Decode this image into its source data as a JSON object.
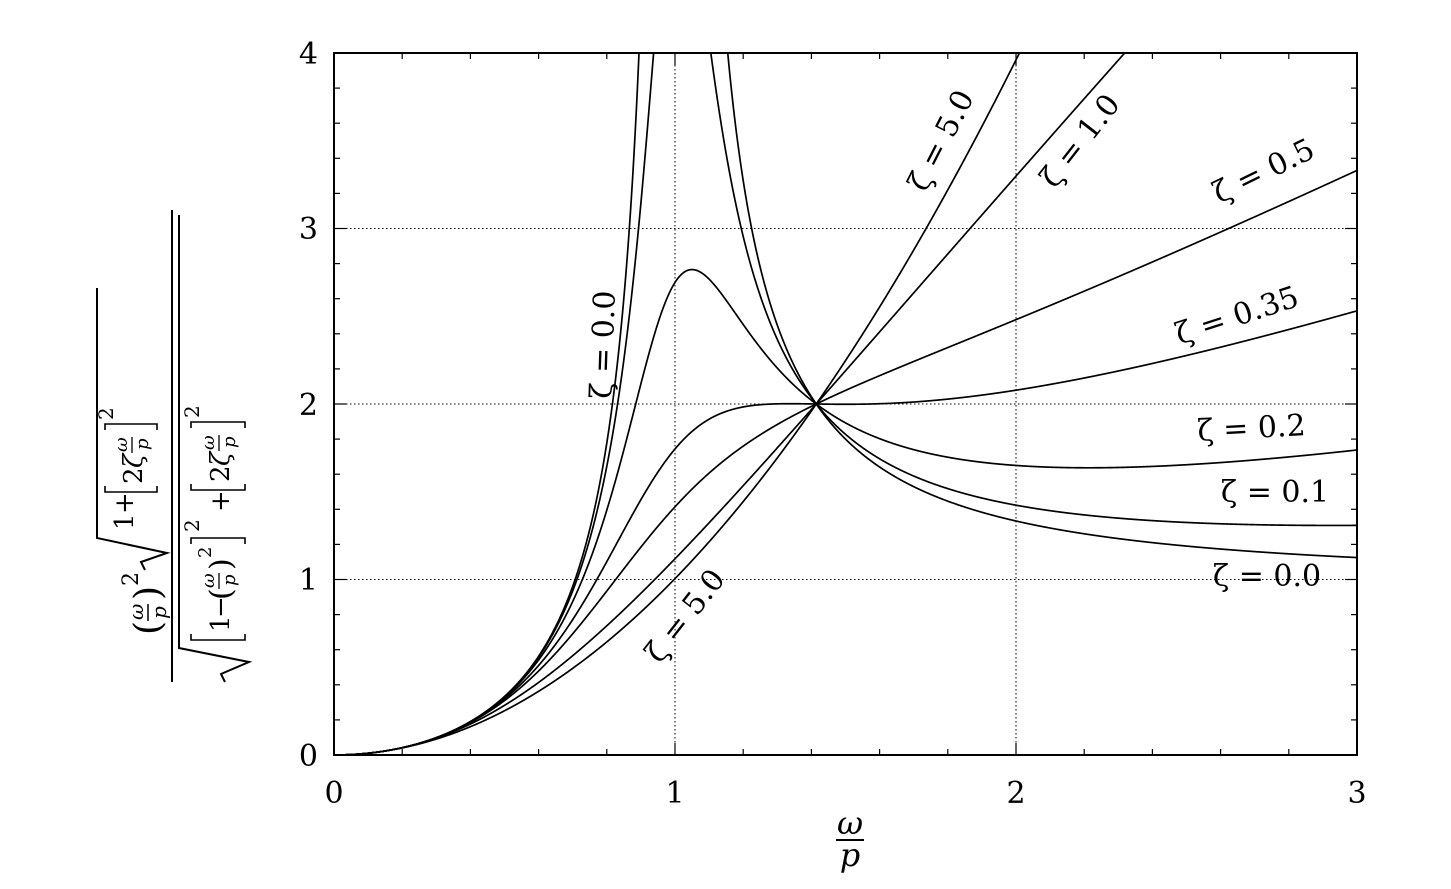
{
  "chart_data": {
    "type": "line",
    "title": "",
    "xlabel": "ω/p",
    "ylabel": "(ω/p)² √(1+[2ζ ω/p]²) / √([1−(ω/p)²]² + [2ζ ω/p]²)",
    "xlim": [
      0,
      3
    ],
    "ylim": [
      0,
      4
    ],
    "grid": true,
    "x_ticks": [
      "0",
      "1",
      "2",
      "3"
    ],
    "y_ticks": [
      "0",
      "1",
      "2",
      "3",
      "4"
    ],
    "formula": "y = x^2 * sqrt(1 + (2*zeta*x)^2) / sqrt((1 - x^2)^2 + (2*zeta*x)^2), x = omega/p",
    "series": [
      {
        "name": "ζ = 0.0",
        "zeta": 0.0,
        "x": [
          0,
          0.5,
          0.8,
          0.9,
          1.414,
          2.0,
          3.0
        ],
        "values": [
          0,
          0.33,
          1.78,
          4.26,
          2.0,
          1.33,
          1.125
        ]
      },
      {
        "name": "ζ = 0.1",
        "zeta": 0.1,
        "x": [
          0,
          0.5,
          0.8,
          1.0,
          1.414,
          2.0,
          3.0
        ],
        "values": [
          0,
          0.33,
          1.72,
          5.1,
          2.0,
          1.4,
          1.31
        ]
      },
      {
        "name": "ζ = 0.2",
        "zeta": 0.2,
        "x": [
          0,
          0.5,
          0.8,
          1.0,
          1.414,
          2.0,
          3.0
        ],
        "values": [
          0,
          0.33,
          1.58,
          2.69,
          2.0,
          1.66,
          1.74
        ]
      },
      {
        "name": "ζ = 0.35",
        "zeta": 0.35,
        "x": [
          0,
          0.5,
          0.8,
          1.05,
          1.414,
          2.0,
          3.0
        ],
        "values": [
          0,
          0.32,
          1.33,
          2.76,
          2.0,
          2.07,
          2.53
        ]
      },
      {
        "name": "ζ = 0.5",
        "zeta": 0.5,
        "x": [
          0,
          0.5,
          0.8,
          1.0,
          1.414,
          2.0,
          3.0
        ],
        "values": [
          0,
          0.31,
          1.11,
          1.41,
          2.0,
          2.47,
          3.34
        ]
      },
      {
        "name": "ζ = 1.0",
        "zeta": 1.0,
        "x": [
          0,
          0.5,
          0.8,
          1.0,
          1.414,
          2.0,
          2.3
        ],
        "values": [
          0,
          0.28,
          0.82,
          1.12,
          2.0,
          3.3,
          4.0
        ]
      },
      {
        "name": "ζ = 5.0",
        "zeta": 5.0,
        "x": [
          0,
          0.5,
          0.8,
          1.0,
          1.414,
          2.0,
          2.0
        ],
        "values": [
          0,
          0.25,
          0.67,
          1.0,
          2.0,
          4.0,
          4.0
        ]
      }
    ]
  },
  "labels": {
    "zeta_00_top": "ζ = 0.0",
    "zeta_50_top": "ζ = 5.0",
    "zeta_10_top": "ζ = 1.0",
    "zeta_05_right": "ζ = 0.5",
    "zeta_035_right": "ζ = 0.35",
    "zeta_02_right": "ζ = 0.2",
    "zeta_01_right": "ζ = 0.1",
    "zeta_00_right": "ζ = 0.0",
    "zeta_50_bottom": "ζ = 5.0"
  },
  "axis_text": {
    "omega": "ω",
    "p": "p",
    "one": "1",
    "plus": "+",
    "minus": "−",
    "two": "2",
    "zeta": "ζ",
    "sq": "2",
    "lparen": "(",
    "rparen": ")"
  }
}
